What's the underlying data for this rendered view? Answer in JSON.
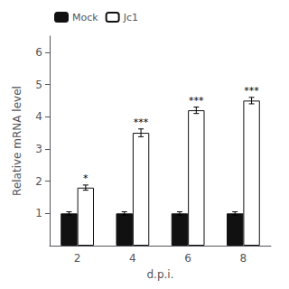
{
  "chart_data": {
    "type": "bar",
    "categories": [
      "2",
      "4",
      "6",
      "8"
    ],
    "xlabel": "d.p.i.",
    "ylabel": "Relative mRNA level",
    "series": [
      {
        "name": "Mock",
        "color": "#111111",
        "values": [
          1.0,
          1.0,
          1.0,
          1.0
        ],
        "errors": [
          0.05,
          0.05,
          0.05,
          0.05
        ]
      },
      {
        "name": "Jc1",
        "color": "#ffffff",
        "values": [
          1.8,
          3.5,
          4.2,
          4.5
        ],
        "errors": [
          0.08,
          0.12,
          0.1,
          0.1
        ],
        "annotations": [
          "*",
          "***",
          "***",
          "***"
        ]
      }
    ],
    "ylim": [
      0,
      6.5
    ],
    "yticks": [
      1,
      2,
      3,
      4,
      5,
      6
    ],
    "grid": false,
    "legend": "upper left"
  }
}
